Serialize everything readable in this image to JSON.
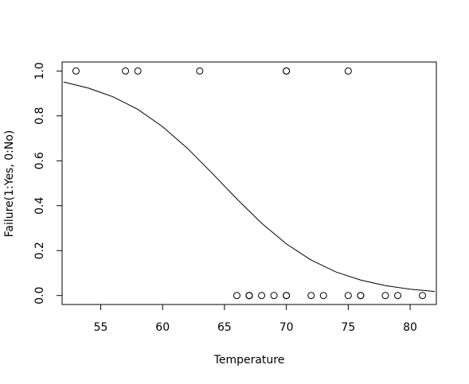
{
  "chart_data": {
    "type": "scatter",
    "x_label": "Temperature",
    "y_label": "Failure(1:Yes, 0:No)",
    "xlim": [
      51.88,
      82.12
    ],
    "ylim": [
      -0.04,
      1.04
    ],
    "xticks": [
      55,
      60,
      65,
      70,
      75,
      80
    ],
    "yticks": [
      {
        "value": 0,
        "label": "0.0"
      },
      {
        "value": 0.2,
        "label": "0.2"
      },
      {
        "value": 0.4,
        "label": "0.4"
      },
      {
        "value": 0.6,
        "label": "0.6"
      },
      {
        "value": 0.8,
        "label": "0.8"
      },
      {
        "value": 1,
        "label": "1.0"
      }
    ],
    "series": [
      {
        "type": "scatter",
        "color": "#000000",
        "x": [
          66,
          70,
          69,
          68,
          67,
          72,
          73,
          70,
          57,
          63,
          70,
          78,
          67,
          53,
          67,
          75,
          70,
          81,
          76,
          79,
          75,
          76,
          58
        ],
        "y": [
          0,
          1,
          0,
          0,
          0,
          0,
          0,
          0,
          1,
          1,
          1,
          0,
          0,
          1,
          0,
          0,
          0,
          0,
          0,
          0,
          1,
          0,
          1
        ]
      },
      {
        "type": "line",
        "color": "#000000",
        "x": [
          52,
          54,
          56,
          58,
          60,
          62,
          64,
          66,
          68,
          70,
          72,
          74,
          76,
          78,
          80,
          82
        ],
        "y": [
          0.951,
          0.924,
          0.885,
          0.829,
          0.752,
          0.656,
          0.545,
          0.43,
          0.322,
          0.23,
          0.158,
          0.105,
          0.069,
          0.044,
          0.028,
          0.018
        ]
      }
    ]
  }
}
